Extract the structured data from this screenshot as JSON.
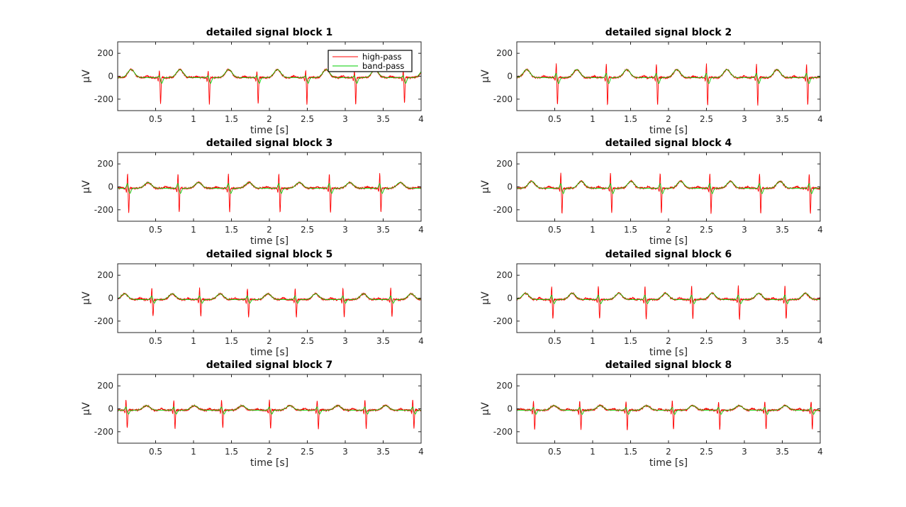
{
  "colors": {
    "high_pass": "#ff0000",
    "band_pass": "#00cc00",
    "axes": "#262626"
  },
  "chart_data": [
    {
      "type": "line",
      "title": "detailed signal block 1",
      "xlabel": "time [s]",
      "ylabel": "μV",
      "xlim": [
        0,
        4
      ],
      "ylim": [
        -300,
        300
      ],
      "xticks": [
        0.5,
        1,
        1.5,
        2,
        2.5,
        3,
        3.5,
        4
      ],
      "xtick_labels": [
        "0.5",
        "1",
        "1.5",
        "2",
        "2.5",
        "3",
        "3.5",
        "4"
      ],
      "yticks": [
        200,
        0,
        -200
      ],
      "ytick_labels": [
        "200",
        "0",
        "-200"
      ],
      "legend": {
        "show": true,
        "position": "top-right",
        "entries": [
          "high-pass",
          "band-pass"
        ]
      },
      "beats": {
        "period_s": 0.643,
        "first_r_peak_s": 0.55,
        "r_peak_uV": 60,
        "s_trough_uV": -230,
        "t_wave_uV": 70
      },
      "series": [
        {
          "name": "high-pass",
          "color": "#ff0000"
        },
        {
          "name": "band-pass",
          "color": "#00cc00"
        }
      ]
    },
    {
      "type": "line",
      "title": "detailed signal block 2",
      "xlabel": "time [s]",
      "ylabel": "μV",
      "xlim": [
        0,
        4
      ],
      "ylim": [
        -300,
        300
      ],
      "xticks": [
        0.5,
        1,
        1.5,
        2,
        2.5,
        3,
        3.5,
        4
      ],
      "xtick_labels": [
        "0.5",
        "1",
        "1.5",
        "2",
        "2.5",
        "3",
        "3.5",
        "4"
      ],
      "yticks": [
        200,
        0,
        -200
      ],
      "ytick_labels": [
        "200",
        "0",
        "-200"
      ],
      "legend": {
        "show": false
      },
      "beats": {
        "period_s": 0.66,
        "first_r_peak_s": 0.52,
        "r_peak_uV": 120,
        "s_trough_uV": -240,
        "t_wave_uV": 70
      }
    },
    {
      "type": "line",
      "title": "detailed signal block 3",
      "xlabel": "time [s]",
      "ylabel": "μV",
      "xlim": [
        0,
        4
      ],
      "ylim": [
        -300,
        300
      ],
      "xticks": [
        0.5,
        1,
        1.5,
        2,
        2.5,
        3,
        3.5,
        4
      ],
      "xtick_labels": [
        "0.5",
        "1",
        "1.5",
        "2",
        "2.5",
        "3",
        "3.5",
        "4"
      ],
      "yticks": [
        200,
        0,
        -200
      ],
      "ytick_labels": [
        "200",
        "0",
        "-200"
      ],
      "legend": {
        "show": false
      },
      "beats": {
        "period_s": 0.665,
        "first_r_peak_s": 0.13,
        "r_peak_uV": 130,
        "s_trough_uV": -210,
        "t_wave_uV": 50
      }
    },
    {
      "type": "line",
      "title": "detailed signal block 4",
      "xlabel": "time [s]",
      "ylabel": "μV",
      "xlim": [
        0,
        4
      ],
      "ylim": [
        -300,
        300
      ],
      "xticks": [
        0.5,
        1,
        1.5,
        2,
        2.5,
        3,
        3.5,
        4
      ],
      "xtick_labels": [
        "0.5",
        "1",
        "1.5",
        "2",
        "2.5",
        "3",
        "3.5",
        "4"
      ],
      "yticks": [
        200,
        0,
        -200
      ],
      "ytick_labels": [
        "200",
        "0",
        "-200"
      ],
      "legend": {
        "show": false
      },
      "beats": {
        "period_s": 0.655,
        "first_r_peak_s": 0.58,
        "r_peak_uV": 130,
        "s_trough_uV": -220,
        "t_wave_uV": 60
      }
    },
    {
      "type": "line",
      "title": "detailed signal block 5",
      "xlabel": "time [s]",
      "ylabel": "μV",
      "xlim": [
        0,
        4
      ],
      "ylim": [
        -300,
        300
      ],
      "xticks": [
        0.5,
        1,
        1.5,
        2,
        2.5,
        3,
        3.5,
        4
      ],
      "xtick_labels": [
        "0.5",
        "1",
        "1.5",
        "2",
        "2.5",
        "3",
        "3.5",
        "4"
      ],
      "yticks": [
        200,
        0,
        -200
      ],
      "ytick_labels": [
        "200",
        "0",
        "-200"
      ],
      "legend": {
        "show": false
      },
      "beats": {
        "period_s": 0.63,
        "first_r_peak_s": 0.45,
        "r_peak_uV": 100,
        "s_trough_uV": -150,
        "t_wave_uV": 50
      }
    },
    {
      "type": "line",
      "title": "detailed signal block 6",
      "xlabel": "time [s]",
      "ylabel": "μV",
      "xlim": [
        0,
        4
      ],
      "ylim": [
        -300,
        300
      ],
      "xticks": [
        0.5,
        1,
        1.5,
        2,
        2.5,
        3,
        3.5,
        4
      ],
      "xtick_labels": [
        "0.5",
        "1",
        "1.5",
        "2",
        "2.5",
        "3",
        "3.5",
        "4"
      ],
      "yticks": [
        200,
        0,
        -200
      ],
      "ytick_labels": [
        "200",
        "0",
        "-200"
      ],
      "legend": {
        "show": false
      },
      "beats": {
        "period_s": 0.615,
        "first_r_peak_s": 0.46,
        "r_peak_uV": 120,
        "s_trough_uV": -170,
        "t_wave_uV": 55
      }
    },
    {
      "type": "line",
      "title": "detailed signal block 7",
      "xlabel": "time [s]",
      "ylabel": "μV",
      "xlim": [
        0,
        4
      ],
      "ylim": [
        -300,
        300
      ],
      "xticks": [
        0.5,
        1,
        1.5,
        2,
        2.5,
        3,
        3.5,
        4
      ],
      "xtick_labels": [
        "0.5",
        "1",
        "1.5",
        "2",
        "2.5",
        "3",
        "3.5",
        "4"
      ],
      "yticks": [
        200,
        0,
        -200
      ],
      "ytick_labels": [
        "200",
        "0",
        "-200"
      ],
      "legend": {
        "show": false
      },
      "beats": {
        "period_s": 0.63,
        "first_r_peak_s": 0.11,
        "r_peak_uV": 90,
        "s_trough_uV": -160,
        "t_wave_uV": 40
      }
    },
    {
      "type": "line",
      "title": "detailed signal block 8",
      "xlabel": "time [s]",
      "ylabel": "μV",
      "xlim": [
        0,
        4
      ],
      "ylim": [
        -300,
        300
      ],
      "xticks": [
        0.5,
        1,
        1.5,
        2,
        2.5,
        3,
        3.5,
        4
      ],
      "xtick_labels": [
        "0.5",
        "1",
        "1.5",
        "2",
        "2.5",
        "3",
        "3.5",
        "4"
      ],
      "yticks": [
        200,
        0,
        -200
      ],
      "ytick_labels": [
        "200",
        "0",
        "-200"
      ],
      "legend": {
        "show": false
      },
      "beats": {
        "period_s": 0.61,
        "first_r_peak_s": 0.22,
        "r_peak_uV": 80,
        "s_trough_uV": -170,
        "t_wave_uV": 40
      }
    }
  ]
}
